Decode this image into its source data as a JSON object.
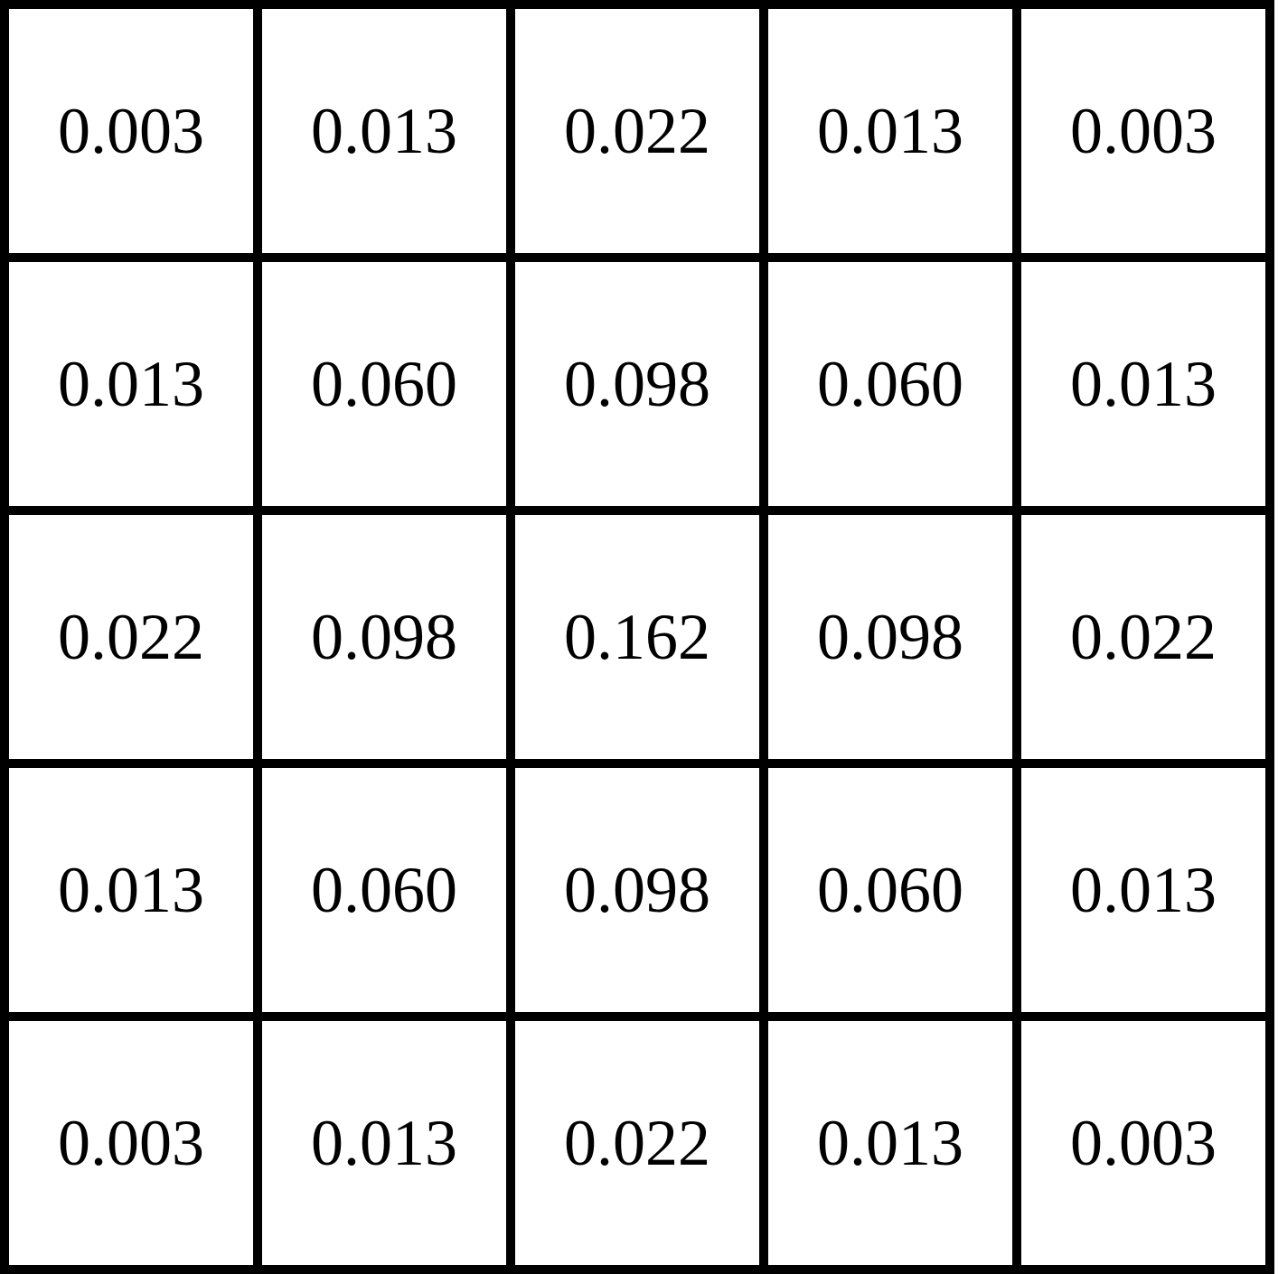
{
  "kernel": {
    "rows": [
      [
        "0.003",
        "0.013",
        "0.022",
        "0.013",
        "0.003"
      ],
      [
        "0.013",
        "0.060",
        "0.098",
        "0.060",
        "0.013"
      ],
      [
        "0.022",
        "0.098",
        "0.162",
        "0.098",
        "0.022"
      ],
      [
        "0.013",
        "0.060",
        "0.098",
        "0.060",
        "0.013"
      ],
      [
        "0.003",
        "0.013",
        "0.022",
        "0.013",
        "0.003"
      ]
    ]
  },
  "colors": {
    "line": "#000000",
    "text": "#000000",
    "background": "#ffffff"
  }
}
